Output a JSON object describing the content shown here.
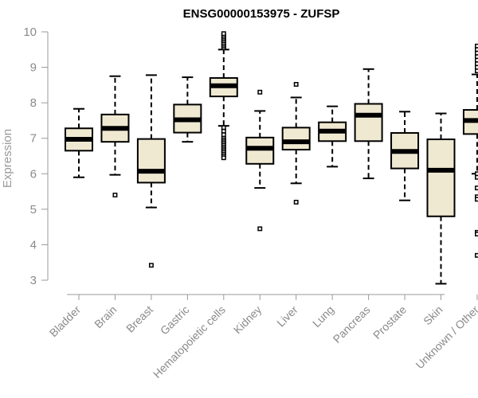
{
  "chart_data": {
    "type": "boxplot",
    "title": "ENSG00000153975 - ZUFSP",
    "xlabel": "",
    "ylabel": "Expression",
    "ylim": [
      3,
      10
    ],
    "yticks": [
      "3",
      "4",
      "5",
      "6",
      "7",
      "8",
      "9",
      "10"
    ],
    "grid": false,
    "categories": [
      "Bladder",
      "Brain",
      "Breast",
      "Gastric",
      "Hematopoietic cells",
      "Kidney",
      "Liver",
      "Lung",
      "Pancreas",
      "Prostate",
      "Skin",
      "Unknown / Other"
    ],
    "boxes": [
      {
        "whisker_low": 5.9,
        "q1": 6.65,
        "median": 6.97,
        "q3": 7.28,
        "whisker_high": 7.83,
        "outliers": []
      },
      {
        "whisker_low": 5.97,
        "q1": 6.9,
        "median": 7.28,
        "q3": 7.67,
        "whisker_high": 8.75,
        "outliers": [
          5.4
        ]
      },
      {
        "whisker_low": 5.05,
        "q1": 5.75,
        "median": 6.07,
        "q3": 6.98,
        "whisker_high": 8.78,
        "outliers": [
          3.42
        ]
      },
      {
        "whisker_low": 6.9,
        "q1": 7.16,
        "median": 7.52,
        "q3": 7.95,
        "whisker_high": 8.72,
        "outliers": []
      },
      {
        "whisker_low": 7.35,
        "q1": 8.18,
        "median": 8.48,
        "q3": 8.7,
        "whisker_high": 9.5,
        "outliers": [
          9.55,
          9.6,
          9.65,
          9.7,
          9.75,
          9.8,
          9.85,
          9.9,
          9.95,
          7.3,
          7.2,
          7.1,
          7.0,
          6.95,
          6.9,
          6.85,
          6.8,
          6.75,
          6.7,
          6.65,
          6.6,
          6.55,
          6.5,
          6.45
        ]
      },
      {
        "whisker_low": 5.6,
        "q1": 6.28,
        "median": 6.72,
        "q3": 7.02,
        "whisker_high": 7.77,
        "outliers": [
          8.3,
          4.45
        ]
      },
      {
        "whisker_low": 5.73,
        "q1": 6.68,
        "median": 6.9,
        "q3": 7.3,
        "whisker_high": 8.15,
        "outliers": [
          8.52,
          5.2
        ]
      },
      {
        "whisker_low": 6.2,
        "q1": 6.92,
        "median": 7.2,
        "q3": 7.45,
        "whisker_high": 7.9,
        "outliers": []
      },
      {
        "whisker_low": 5.87,
        "q1": 6.92,
        "median": 7.65,
        "q3": 7.97,
        "whisker_high": 8.95,
        "outliers": []
      },
      {
        "whisker_low": 5.25,
        "q1": 6.15,
        "median": 6.63,
        "q3": 7.15,
        "whisker_high": 7.75,
        "outliers": []
      },
      {
        "whisker_low": 2.9,
        "q1": 4.8,
        "median": 6.1,
        "q3": 6.97,
        "whisker_high": 7.7,
        "outliers": []
      },
      {
        "whisker_low": 6.0,
        "q1": 7.12,
        "median": 7.5,
        "q3": 7.8,
        "whisker_high": 8.8,
        "outliers": [
          9.6,
          9.5,
          9.4,
          9.3,
          9.2,
          9.1,
          9.0,
          8.9,
          6.0,
          5.9,
          5.6,
          5.35,
          5.28,
          4.35,
          4.3,
          3.7
        ]
      }
    ],
    "colors": {
      "box_fill": "#f0e9d2",
      "box_stroke": "#000000",
      "median": "#000000",
      "axis": "#9a9a9a",
      "tick_text": "#8a8a8a"
    }
  }
}
